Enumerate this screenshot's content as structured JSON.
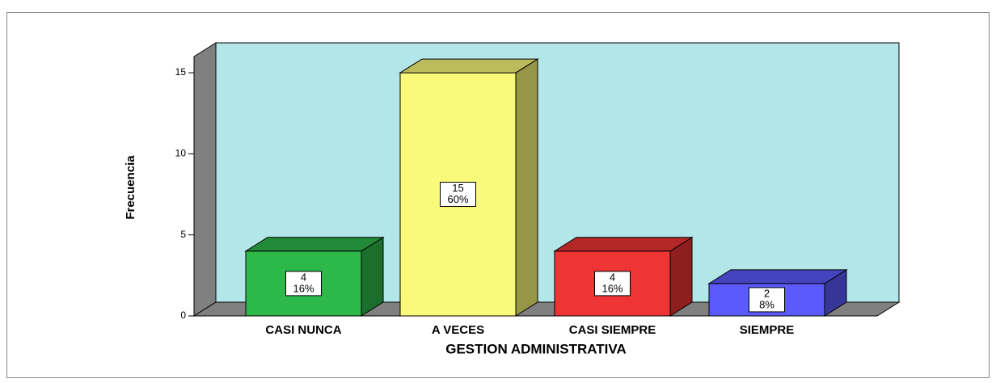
{
  "chart_data": {
    "type": "bar3d",
    "x_label": "GESTION ADMINISTRATIVA",
    "y_label": "Frecuencia",
    "categories": [
      "CASI NUNCA",
      "A VECES",
      "CASI SIEMPRE",
      "SIEMPRE"
    ],
    "values": [
      4,
      15,
      4,
      2
    ],
    "percentages": [
      16,
      60,
      16,
      8
    ],
    "percentage_labels": [
      "16%",
      "60%",
      "16%",
      "8%"
    ],
    "colors": [
      "#2db84a",
      "#fafa7a",
      "#ee3434",
      "#5a5aff"
    ],
    "wall_color": "#b3e6e8",
    "ylim": [
      0,
      16
    ],
    "yticks": [
      0,
      5,
      10,
      15
    ]
  }
}
